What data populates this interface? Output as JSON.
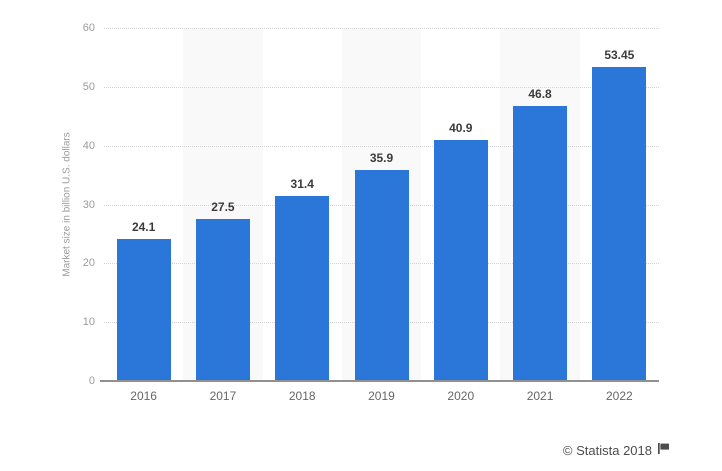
{
  "chart": {
    "y_axis_title": "Market size in billion U.S. dollars",
    "y_ticks": [
      0,
      10,
      20,
      30,
      40,
      50,
      60
    ],
    "footer": {
      "text": "© Statista 2018"
    },
    "colors": {
      "bar": "#2b76d9",
      "plot_band": "#f9f9f9",
      "gridline": "#d4d4d4",
      "axis_line": "#909090",
      "tick_label": "#9b9b9b",
      "category_label": "#666666",
      "value_label": "#3b3b3b",
      "footer_text": "#4c4c4c"
    }
  },
  "chart_data": {
    "type": "bar",
    "categories": [
      "2016",
      "2017",
      "2018",
      "2019",
      "2020",
      "2021",
      "2022"
    ],
    "values": [
      24.1,
      27.5,
      31.4,
      35.9,
      40.9,
      46.8,
      53.45
    ],
    "title": "",
    "xlabel": "",
    "ylabel": "Market size in billion U.S. dollars",
    "ylim": [
      0,
      60
    ],
    "grid": "horizontal-dotted",
    "legend": "none",
    "bar_color": "#2b76d9",
    "alternating_band_categories": [
      "2017",
      "2019",
      "2021"
    ]
  }
}
